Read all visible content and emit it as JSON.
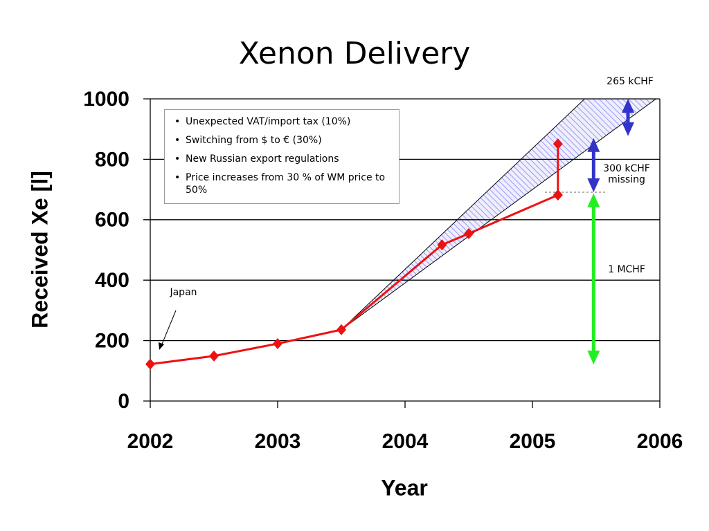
{
  "chart_data": {
    "type": "line",
    "title": "Xenon Delivery",
    "xlabel": "Year",
    "ylabel": "Received Xe [l]",
    "xlim": [
      2002,
      2006
    ],
    "xticks": [
      2002,
      2003,
      2004,
      2005,
      2006
    ],
    "ylim": [
      0,
      1000
    ],
    "yticks": [
      0,
      200,
      400,
      600,
      800,
      1000
    ],
    "grid": true,
    "series": [
      {
        "color": "#ee1111",
        "x": [
          2002.0,
          2002.5,
          2003.0,
          2003.5,
          2004.29,
          2004.5,
          2005.2
        ],
        "values": [
          122,
          149,
          190,
          236,
          517,
          554,
          682
        ]
      },
      {
        "color": "#ee1111",
        "x": [
          2005.2,
          2005.2
        ],
        "values": [
          682,
          851
        ]
      }
    ],
    "band": {
      "color": "#9999ee",
      "upper": {
        "x": [
          2003.5,
          2005.41
        ],
        "values": [
          236,
          1000
        ]
      },
      "lower": {
        "x": [
          2003.5,
          2005.97
        ],
        "values": [
          236,
          1000
        ]
      }
    },
    "annotations": [
      {
        "text": "265 kCHF",
        "x": 2005.75,
        "from": 1000,
        "to": 877,
        "color": "#3333cc"
      },
      {
        "text": "300 kCHF missing",
        "x": 2005.48,
        "from": 870,
        "to": 691,
        "color": "#3333cc"
      },
      {
        "text": "1 MCHF",
        "x": 2005.48,
        "from": 687,
        "to": 121,
        "color": "#22ee22"
      },
      {
        "text": "Japan"
      }
    ],
    "notes": [
      "Unexpected VAT/import tax (10%)",
      "Switching from $ to € (30%)",
      "New Russian export regulations",
      "Price increases from 30 % of WM price to 50%"
    ]
  }
}
